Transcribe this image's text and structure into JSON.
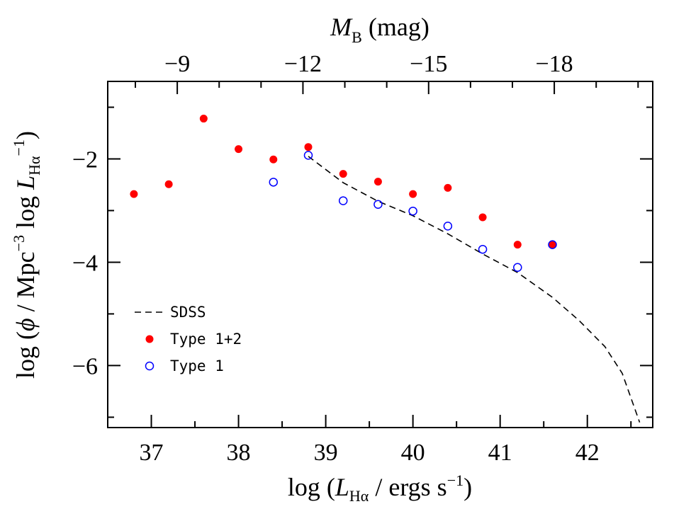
{
  "chart_data": {
    "type": "scatter",
    "x_label": [
      "log (",
      "L",
      "Hα",
      " / ergs s",
      "−1",
      ")"
    ],
    "y_label": [
      "log (",
      "ϕ",
      " / Mpc",
      "−3",
      " log ",
      "L",
      "Hα",
      "−1",
      ")"
    ],
    "x2_label": [
      "M",
      "B",
      " (mag)"
    ],
    "xlim": [
      36.5,
      42.75
    ],
    "ylim": [
      -7.2,
      -0.5
    ],
    "xticks": [
      37,
      38,
      39,
      40,
      41,
      42
    ],
    "xminorticks": [
      37.5,
      38.5,
      39.5,
      40.5,
      41.5,
      42.5
    ],
    "yticks": [
      {
        "value": -2,
        "label": "−2"
      },
      {
        "value": -4,
        "label": "−4"
      },
      {
        "value": -6,
        "label": "−6"
      }
    ],
    "yminorticks": [
      -1,
      -3,
      -5,
      -7
    ],
    "x2lim": [
      -7.34,
      -20.35
    ],
    "x2ticks": [
      {
        "value": -9,
        "label": "−9"
      },
      {
        "value": -12,
        "label": "−12"
      },
      {
        "value": -15,
        "label": "−15"
      },
      {
        "value": -18,
        "label": "−18"
      }
    ],
    "x2minorticks": [
      -8,
      -10,
      -11,
      -13,
      -14,
      -16,
      -17,
      -19,
      -20
    ],
    "legend": "lower left",
    "series": [
      {
        "name": "SDSS",
        "color": "#000000",
        "marker": "dashed-line",
        "x": [
          38.8,
          39.2,
          39.6,
          40.0,
          40.4,
          40.8,
          41.2,
          41.6,
          41.9,
          42.2,
          42.4,
          42.6
        ],
        "values": [
          -1.95,
          -2.46,
          -2.82,
          -3.1,
          -3.45,
          -3.84,
          -4.2,
          -4.68,
          -5.12,
          -5.63,
          -6.15,
          -7.1
        ]
      },
      {
        "name": "Type 1+2",
        "color": "#ff0000",
        "marker": "filled",
        "x": [
          36.8,
          37.2,
          37.6,
          38.0,
          38.4,
          38.8,
          39.2,
          39.6,
          40.0,
          40.4,
          40.8,
          41.2,
          41.6
        ],
        "values": [
          -2.68,
          -2.49,
          -1.22,
          -1.81,
          -2.01,
          -1.77,
          -2.29,
          -2.44,
          -2.68,
          -2.56,
          -3.13,
          -3.66,
          -3.66
        ]
      },
      {
        "name": "Type 1",
        "color": "#0000ff",
        "marker": "open",
        "x": [
          38.4,
          38.8,
          39.2,
          39.6,
          40.0,
          40.4,
          40.8,
          41.2,
          41.6
        ],
        "values": [
          -2.45,
          -1.93,
          -2.81,
          -2.88,
          -3.01,
          -3.3,
          -3.75,
          -4.1,
          -3.66
        ]
      }
    ]
  }
}
